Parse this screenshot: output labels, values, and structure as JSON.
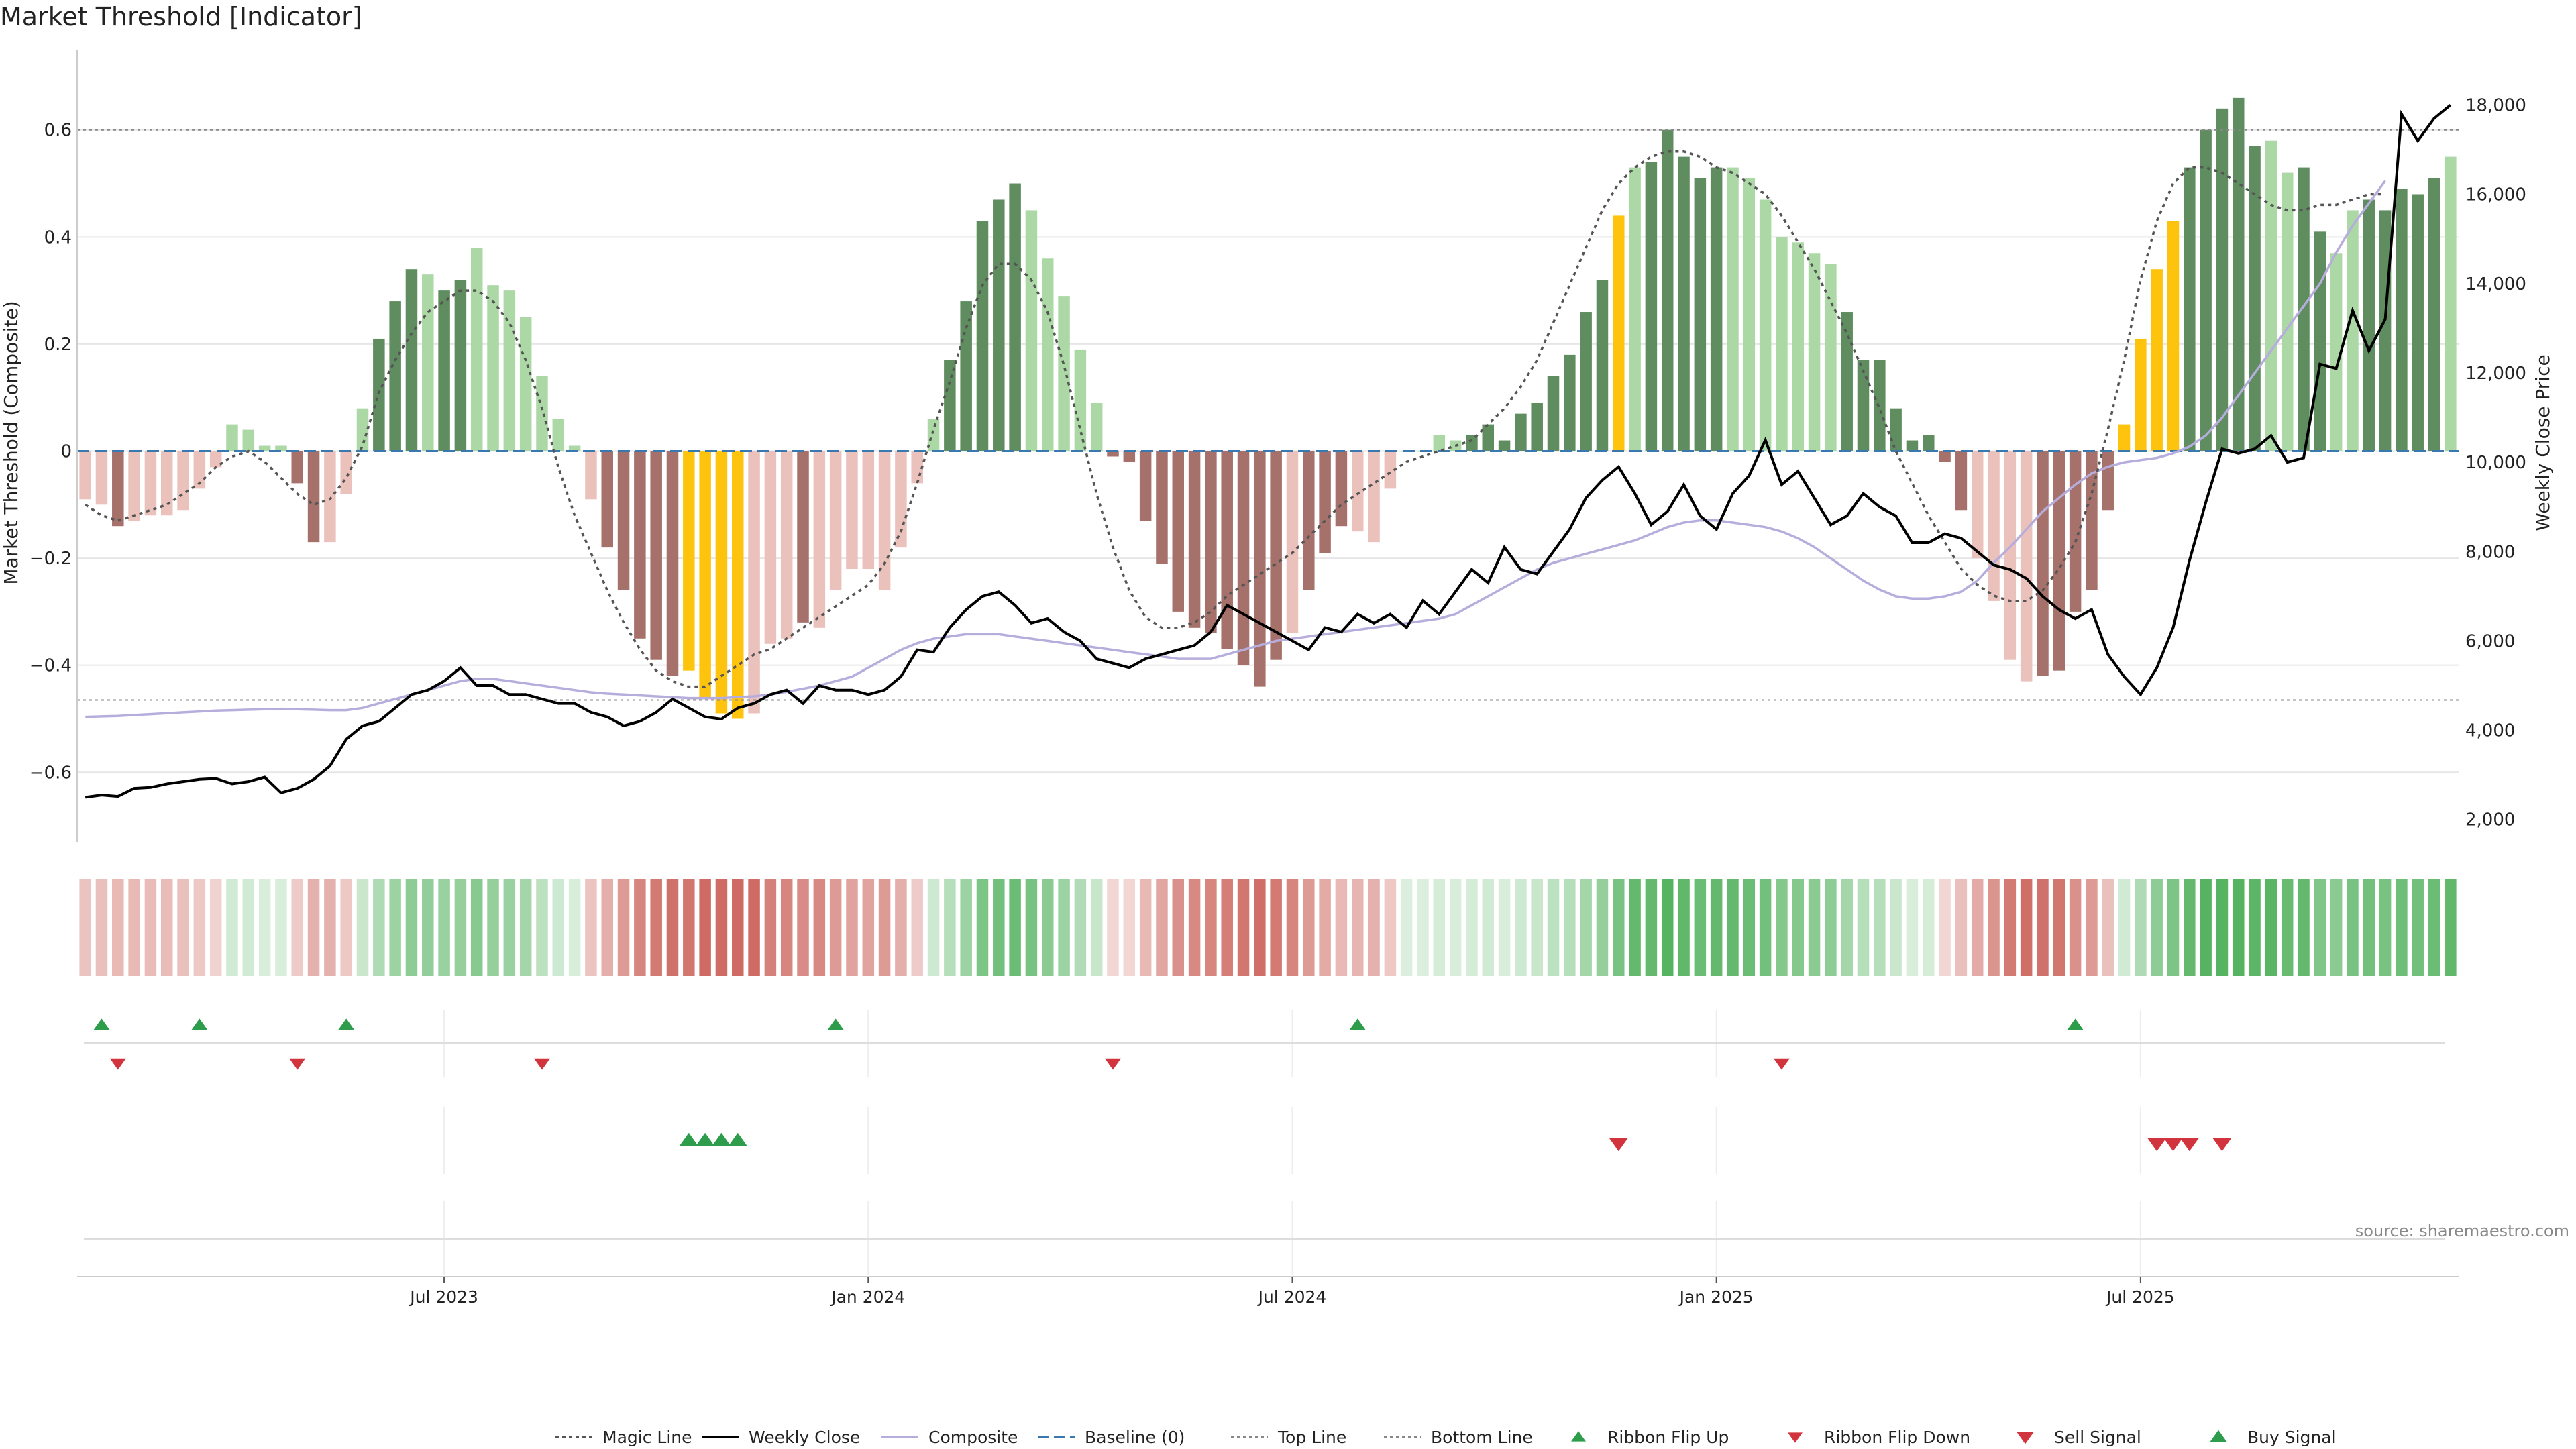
{
  "title": "Market Threshold [Indicator]",
  "source": "source: sharemaestro.com",
  "colors": {
    "pos_strong": "#5f8d5f",
    "pos_weak": "#acd8a6",
    "neg_strong": "#a6716b",
    "neg_weak": "#ebc1bb",
    "extreme": "#fec40d",
    "magic": "#555555",
    "weekly": "#000000",
    "composite": "#b7addd",
    "baseline": "#3a78b0",
    "ref": "#888888",
    "signal_up": "#2e9d4b",
    "signal_down": "#d2343e",
    "grid": "#e6e6e6"
  },
  "chart_data": {
    "type": "bar",
    "ylabel": "Market Threshold (Composite)",
    "y2label": "Weekly Close Price",
    "ylim": [
      -0.73,
      0.73
    ],
    "y2lim": [
      1500,
      19000
    ],
    "yticks": [
      -0.6,
      -0.4,
      -0.2,
      0,
      0.2,
      0.4,
      0.6
    ],
    "ytick_labels": [
      "−0.6",
      "−0.4",
      "−0.2",
      "0",
      "0.2",
      "0.4",
      "0.6"
    ],
    "y2ticks": [
      2000,
      4000,
      6000,
      8000,
      10000,
      12000,
      14000,
      16000,
      18000
    ],
    "y2tick_labels": [
      "2,000",
      "4,000",
      "6,000",
      "8,000",
      "10,000",
      "12,000",
      "14,000",
      "16,000",
      "18,000"
    ],
    "top_line": 0.6,
    "bottom_line": -0.465,
    "x_ticks": [
      {
        "label": "Jul 2023",
        "week": 22
      },
      {
        "label": "Jan 2024",
        "week": 48
      },
      {
        "label": "Jul 2024",
        "week": 74
      },
      {
        "label": "Jan 2025",
        "week": 100
      },
      {
        "label": "Jul 2025",
        "week": 126
      }
    ],
    "composite_bars": [
      -0.09,
      -0.1,
      -0.14,
      -0.13,
      -0.12,
      -0.12,
      -0.11,
      -0.07,
      -0.03,
      0.05,
      0.04,
      0.01,
      0.01,
      -0.06,
      -0.17,
      -0.17,
      -0.08,
      0.08,
      0.21,
      0.28,
      0.34,
      0.33,
      0.3,
      0.32,
      0.38,
      0.31,
      0.3,
      0.25,
      0.14,
      0.06,
      0.01,
      -0.09,
      -0.18,
      -0.26,
      -0.35,
      -0.39,
      -0.42,
      -0.41,
      -0.46,
      -0.49,
      -0.5,
      -0.49,
      -0.36,
      -0.35,
      -0.32,
      -0.33,
      -0.26,
      -0.22,
      -0.22,
      -0.26,
      -0.18,
      -0.06,
      0.06,
      0.17,
      0.28,
      0.43,
      0.47,
      0.5,
      0.45,
      0.36,
      0.29,
      0.19,
      0.09,
      -0.01,
      -0.02,
      -0.13,
      -0.21,
      -0.3,
      -0.33,
      -0.34,
      -0.37,
      -0.4,
      -0.44,
      -0.39,
      -0.34,
      -0.26,
      -0.19,
      -0.14,
      -0.15,
      -0.17,
      -0.07,
      0.0,
      0.0,
      0.03,
      0.02,
      0.03,
      0.05,
      0.02,
      0.07,
      0.09,
      0.14,
      0.18,
      0.26,
      0.32,
      0.44,
      0.53,
      0.54,
      0.6,
      0.55,
      0.51,
      0.53,
      0.53,
      0.51,
      0.47,
      0.4,
      0.39,
      0.37,
      0.35,
      0.26,
      0.17,
      0.17,
      0.08,
      0.02,
      0.03,
      -0.02,
      -0.11,
      -0.2,
      -0.28,
      -0.39,
      -0.43,
      -0.42,
      -0.41,
      -0.3,
      -0.26,
      -0.11,
      0.05,
      0.21,
      0.34,
      0.43,
      0.53,
      0.6,
      0.64,
      0.66,
      0.57,
      0.58,
      0.52,
      0.53,
      0.41,
      0.37,
      0.45,
      0.47,
      0.45,
      0.49,
      0.48,
      0.51,
      0.55
    ],
    "extreme_weeks": [
      37,
      38,
      39,
      40,
      94,
      125,
      126,
      127,
      128
    ],
    "strong_weeks": [
      2,
      13,
      14,
      18,
      19,
      20,
      22,
      23,
      32,
      33,
      34,
      35,
      36,
      44,
      53,
      54,
      55,
      56,
      57,
      63,
      64,
      65,
      66,
      67,
      68,
      69,
      70,
      71,
      72,
      73,
      75,
      76,
      77,
      85,
      86,
      87,
      88,
      89,
      90,
      91,
      92,
      93,
      96,
      97,
      98,
      99,
      100,
      108,
      109,
      110,
      111,
      112,
      113,
      114,
      115,
      120,
      121,
      122,
      123,
      124,
      129,
      130,
      131,
      132,
      133,
      136,
      137,
      140,
      141,
      142,
      143,
      144
    ],
    "magic_line": [
      -0.1,
      -0.12,
      -0.13,
      -0.12,
      -0.11,
      -0.1,
      -0.08,
      -0.06,
      -0.03,
      -0.01,
      0.0,
      -0.02,
      -0.05,
      -0.08,
      -0.1,
      -0.09,
      -0.05,
      0.01,
      0.11,
      0.17,
      0.22,
      0.26,
      0.28,
      0.3,
      0.3,
      0.28,
      0.24,
      0.17,
      0.08,
      -0.03,
      -0.12,
      -0.19,
      -0.26,
      -0.32,
      -0.37,
      -0.41,
      -0.43,
      -0.44,
      -0.44,
      -0.42,
      -0.4,
      -0.38,
      -0.37,
      -0.35,
      -0.33,
      -0.31,
      -0.29,
      -0.27,
      -0.25,
      -0.21,
      -0.15,
      -0.06,
      0.04,
      0.13,
      0.23,
      0.31,
      0.35,
      0.35,
      0.32,
      0.26,
      0.16,
      0.04,
      -0.08,
      -0.18,
      -0.26,
      -0.31,
      -0.33,
      -0.33,
      -0.32,
      -0.3,
      -0.27,
      -0.25,
      -0.23,
      -0.21,
      -0.19,
      -0.16,
      -0.13,
      -0.1,
      -0.08,
      -0.06,
      -0.04,
      -0.02,
      -0.01,
      0.0,
      0.01,
      0.02,
      0.05,
      0.08,
      0.12,
      0.17,
      0.24,
      0.31,
      0.38,
      0.45,
      0.5,
      0.53,
      0.55,
      0.56,
      0.56,
      0.55,
      0.53,
      0.52,
      0.5,
      0.48,
      0.44,
      0.39,
      0.34,
      0.28,
      0.22,
      0.15,
      0.08,
      0.0,
      -0.06,
      -0.12,
      -0.17,
      -0.22,
      -0.25,
      -0.27,
      -0.28,
      -0.28,
      -0.26,
      -0.22,
      -0.17,
      -0.08,
      0.04,
      0.17,
      0.32,
      0.43,
      0.5,
      0.53,
      0.53,
      0.52,
      0.5,
      0.48,
      0.46,
      0.45,
      0.45,
      0.46,
      0.46,
      0.47,
      0.48,
      0.48
    ],
    "weekly_close": [
      2500,
      2550,
      2520,
      2700,
      2720,
      2800,
      2850,
      2900,
      2920,
      2800,
      2850,
      2950,
      2600,
      2700,
      2900,
      3200,
      3800,
      4100,
      4200,
      4500,
      4800,
      4900,
      5100,
      5400,
      5000,
      5000,
      4800,
      4800,
      4700,
      4600,
      4600,
      4400,
      4300,
      4100,
      4200,
      4400,
      4700,
      4500,
      4300,
      4250,
      4500,
      4600,
      4800,
      4900,
      4600,
      5000,
      4900,
      4900,
      4800,
      4900,
      5200,
      5800,
      5750,
      6300,
      6700,
      7000,
      7100,
      6800,
      6400,
      6500,
      6200,
      6000,
      5600,
      5500,
      5400,
      5600,
      5700,
      5800,
      5900,
      6200,
      6800,
      6600,
      6400,
      6200,
      6000,
      5800,
      6300,
      6200,
      6600,
      6400,
      6600,
      6300,
      6900,
      6600,
      7100,
      7600,
      7300,
      8100,
      7600,
      7500,
      8000,
      8500,
      9200,
      9600,
      9900,
      9300,
      8600,
      8900,
      9500,
      8800,
      8500,
      9300,
      9700,
      10500,
      9500,
      9800,
      9200,
      8600,
      8800,
      9300,
      9000,
      8800,
      8200,
      8200,
      8400,
      8300,
      8000,
      7700,
      7600,
      7400,
      7000,
      6700,
      6500,
      6700,
      5700,
      5200,
      4800,
      5400,
      6300,
      7800,
      9100,
      10300,
      10200,
      10300,
      10600,
      10000,
      10100,
      12200,
      12100,
      13400,
      12500,
      13200,
      17800,
      17200,
      17700,
      18000
    ],
    "composite_line": [
      4300,
      4310,
      4320,
      4340,
      4360,
      4380,
      4400,
      4420,
      4440,
      4450,
      4460,
      4470,
      4480,
      4470,
      4460,
      4450,
      4450,
      4500,
      4600,
      4700,
      4800,
      4900,
      5000,
      5100,
      5150,
      5150,
      5100,
      5050,
      5000,
      4950,
      4900,
      4850,
      4820,
      4800,
      4780,
      4760,
      4740,
      4720,
      4720,
      4720,
      4740,
      4760,
      4800,
      4860,
      4930,
      5000,
      5100,
      5200,
      5400,
      5600,
      5800,
      5950,
      6050,
      6100,
      6150,
      6150,
      6150,
      6100,
      6050,
      6000,
      5950,
      5900,
      5850,
      5800,
      5750,
      5700,
      5650,
      5600,
      5600,
      5600,
      5700,
      5800,
      5900,
      6000,
      6050,
      6100,
      6150,
      6200,
      6250,
      6300,
      6350,
      6400,
      6450,
      6500,
      6600,
      6800,
      7000,
      7200,
      7400,
      7600,
      7750,
      7850,
      7950,
      8050,
      8150,
      8250,
      8400,
      8550,
      8650,
      8700,
      8700,
      8650,
      8600,
      8550,
      8450,
      8300,
      8100,
      7850,
      7600,
      7350,
      7150,
      7000,
      6950,
      6950,
      7000,
      7100,
      7350,
      7750,
      8100,
      8500,
      8900,
      9200,
      9500,
      9750,
      9900,
      10000,
      10050,
      10100,
      10200,
      10350,
      10600,
      11000,
      11500,
      12000,
      12500,
      13000,
      13500,
      14000,
      14700,
      15300,
      15800,
      16300
    ],
    "ribbon_colors": [
      "#f3d6d4",
      "#f1d2cf",
      "#c9e8c6",
      "#ecc4c1",
      "#e4b5b1",
      "#b7dfb5",
      "#c2e4c0",
      "#bfe2bd",
      "#a8d8a6",
      "#96cf94",
      "#7ec37f",
      "#6aba6d",
      "#56ae5a",
      "#4ca953"
    ],
    "ribbon_pattern": [
      1,
      2,
      3,
      4,
      4,
      4,
      4,
      4,
      4,
      4,
      4,
      4,
      4,
      4,
      4,
      4,
      4,
      4,
      4,
      4,
      4,
      4,
      4,
      4,
      4,
      4,
      4,
      4,
      4,
      4,
      4,
      4,
      4,
      4,
      4,
      4,
      4,
      4,
      4,
      4,
      4,
      4,
      4,
      4,
      4,
      4,
      4,
      4,
      4,
      4,
      4,
      4,
      4,
      4,
      4,
      4,
      4,
      4,
      4,
      4,
      4,
      4,
      4,
      4,
      4,
      4,
      4,
      4,
      4,
      4,
      4,
      4,
      4,
      4,
      4,
      4,
      4,
      4,
      4,
      4,
      4,
      4,
      4,
      4,
      4,
      4,
      4,
      4,
      4,
      4,
      4,
      4,
      4,
      4,
      4,
      4,
      4,
      4,
      4,
      4,
      4,
      4,
      4,
      4,
      4,
      4,
      4,
      4,
      4,
      4,
      4,
      4,
      4,
      4,
      4,
      4,
      4,
      4,
      4,
      4,
      4,
      4,
      4,
      4,
      4,
      4,
      4,
      4,
      4,
      4,
      4,
      4,
      4,
      4,
      4,
      4,
      4,
      4,
      4,
      4,
      4,
      4,
      4,
      4,
      4,
      4
    ],
    "ribbon_flip_up_weeks": [
      1,
      7,
      16,
      46,
      78,
      122
    ],
    "ribbon_flip_down_weeks": [
      2,
      13,
      28,
      63,
      104
    ],
    "buy_signal_weeks": [
      37,
      38,
      39,
      40
    ],
    "sell_signal_weeks": [
      94,
      127,
      128,
      129,
      131
    ],
    "legend": [
      "Magic Line",
      "Weekly Close",
      "Composite",
      "Baseline (0)",
      "Top Line",
      "Bottom Line",
      "Ribbon Flip Up",
      "Ribbon Flip Down",
      "Sell Signal",
      "Buy Signal"
    ]
  }
}
